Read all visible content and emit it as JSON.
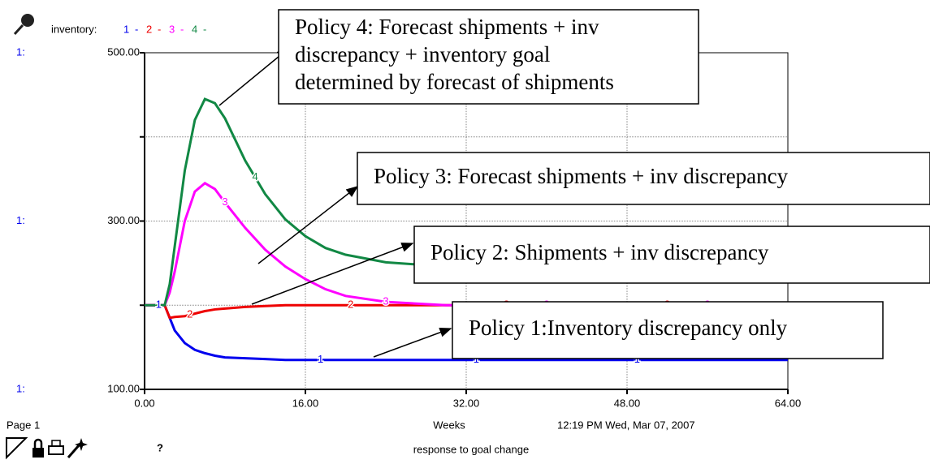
{
  "chart_data": {
    "type": "line",
    "legend_label": "inventory:",
    "legend_separator": "-",
    "axis_series_label": "1:",
    "x_label": "Weeks",
    "page_label": "Page 1",
    "timestamp": "12:19 PM   Wed, Mar 07, 2007",
    "footer": "response to goal change",
    "help_icon": "?",
    "x": [
      0,
      2,
      2.5,
      3,
      4,
      5,
      6,
      7,
      8,
      10,
      12,
      14,
      16,
      18,
      20,
      24,
      30,
      40,
      64
    ],
    "series": [
      {
        "name": "1",
        "color": "#0000ee",
        "values": [
          200,
          200,
          185,
          170,
          155,
          147,
          143,
          140,
          138,
          137,
          136,
          135,
          135,
          135,
          135,
          135,
          135,
          135,
          135
        ]
      },
      {
        "name": "2",
        "color": "#ee0000",
        "values": [
          200,
          200,
          185,
          186,
          187,
          190,
          193,
          195,
          196,
          198,
          199,
          200,
          200,
          200,
          200,
          200,
          200,
          200,
          200
        ]
      },
      {
        "name": "3",
        "color": "#ff00ff",
        "values": [
          200,
          200,
          215,
          240,
          300,
          335,
          345,
          338,
          322,
          292,
          266,
          246,
          231,
          219,
          211,
          204,
          200,
          200,
          200
        ]
      },
      {
        "name": "4",
        "color": "#118844",
        "values": [
          200,
          200,
          225,
          270,
          360,
          420,
          445,
          440,
          422,
          372,
          332,
          302,
          282,
          268,
          260,
          251,
          246,
          244,
          244
        ]
      }
    ],
    "xlim": [
      0,
      64
    ],
    "xticks": [
      {
        "value": 0,
        "label": "0.00"
      },
      {
        "value": 16,
        "label": "16.00"
      },
      {
        "value": 32,
        "label": "32.00"
      },
      {
        "value": 48,
        "label": "48.00"
      },
      {
        "value": 64,
        "label": "64.00"
      }
    ],
    "ylim": [
      100,
      500
    ],
    "yticks": [
      {
        "value": 100,
        "label": "100.00"
      },
      {
        "value": 200,
        "label": null
      },
      {
        "value": 300,
        "label": "300.00"
      },
      {
        "value": 400,
        "label": null
      },
      {
        "value": 500,
        "label": "500.00"
      }
    ],
    "grid": true,
    "annotations": [
      {
        "lines": [
          "Policy 4: Forecast shipments + inv",
          "discrepancy + inventory goal",
          "determined by forecast of shipments"
        ]
      },
      {
        "lines": [
          "Policy 3: Forecast shipments + inv discrepancy"
        ]
      },
      {
        "lines": [
          "Policy 2: Shipments + inv discrepancy"
        ]
      },
      {
        "lines": [
          "Policy 1:Inventory discrepancy only"
        ]
      }
    ]
  }
}
